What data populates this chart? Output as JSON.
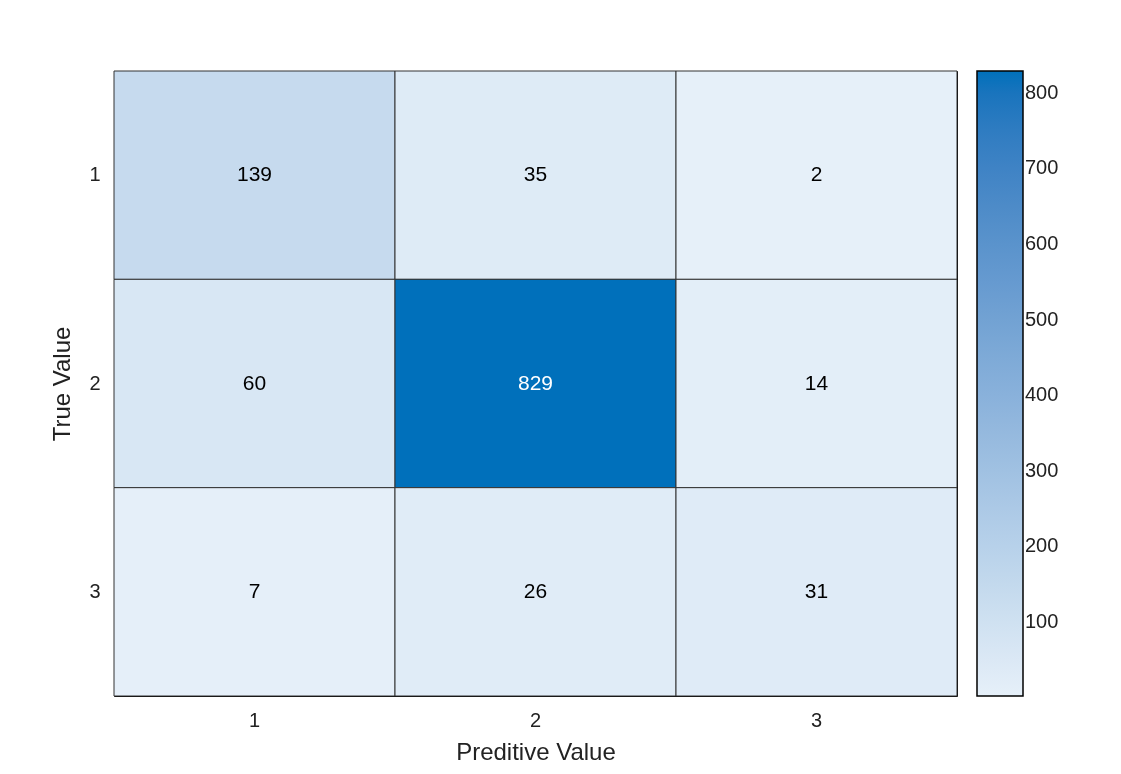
{
  "chart_data": {
    "type": "heatmap",
    "xlabel": "Preditive Value",
    "ylabel": "True Value",
    "categories": [
      "1",
      "2",
      "3"
    ],
    "y_categories": [
      "1",
      "2",
      "3"
    ],
    "cells": [
      [
        139,
        35,
        2
      ],
      [
        60,
        829,
        14
      ],
      [
        7,
        26,
        31
      ]
    ],
    "clim": [
      2,
      829
    ],
    "cticks": [
      100,
      200,
      300,
      400,
      500,
      600,
      700,
      800
    ],
    "data_labels": true
  }
}
